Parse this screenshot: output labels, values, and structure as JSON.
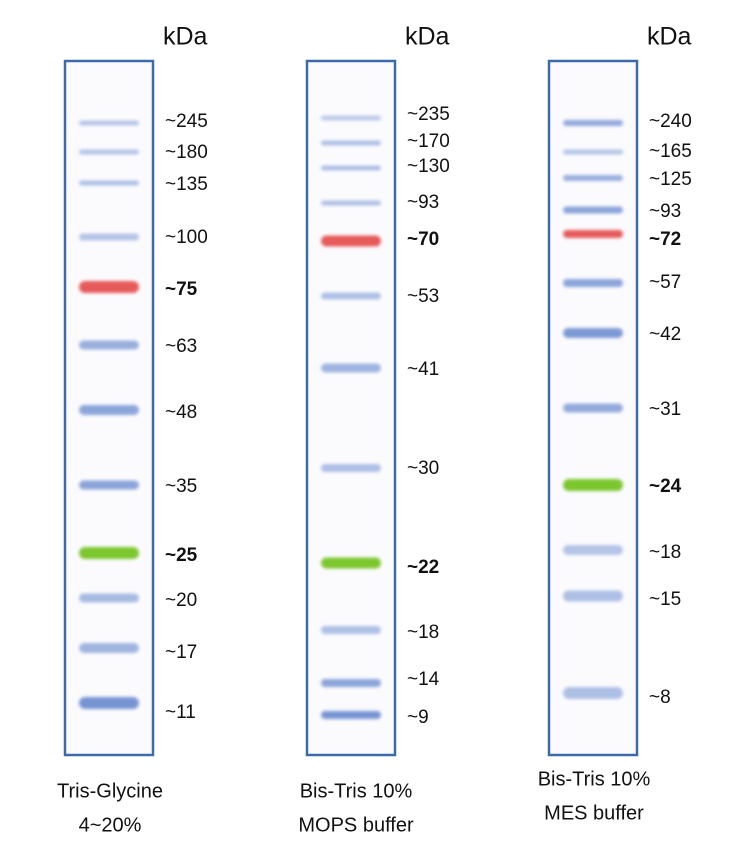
{
  "lanes": [
    {
      "unit": "kDa",
      "markers": [
        "~245",
        "~180",
        "~135",
        "~100",
        "~75",
        "~63",
        "~48",
        "~35",
        "~25",
        "~20",
        "~17",
        "~11"
      ],
      "caption": [
        "Tris-Glycine",
        "4~20%"
      ]
    },
    {
      "unit": "kDa",
      "markers": [
        "~235",
        "~170",
        "~130",
        "~93",
        "~70",
        "~53",
        "~41",
        "~30",
        "~22",
        "~18",
        "~14",
        "~9"
      ],
      "caption": [
        "Bis-Tris 10%",
        "MOPS buffer"
      ]
    },
    {
      "unit": "kDa",
      "markers": [
        "~240",
        "~165",
        "~125",
        "~93",
        "~72",
        "~57",
        "~42",
        "~31",
        "~24",
        "~18",
        "~15",
        "~8"
      ],
      "caption": [
        "Bis-Tris 10%",
        "MES buffer"
      ]
    }
  ]
}
